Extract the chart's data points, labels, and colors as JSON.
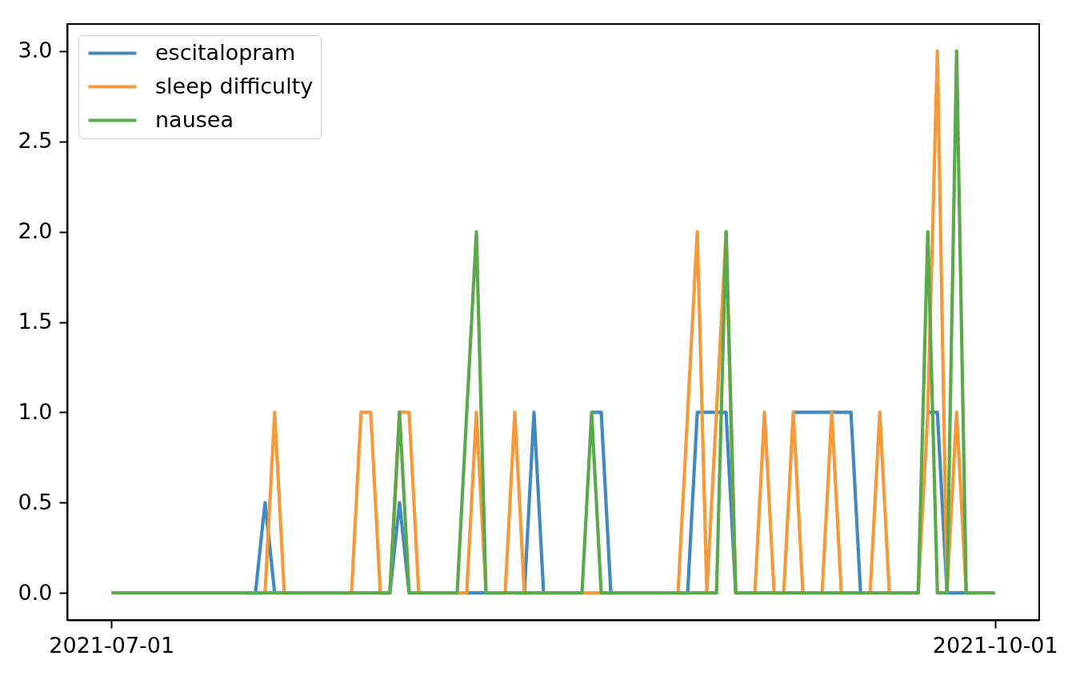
{
  "chart_data": {
    "type": "line",
    "x": [
      "2021-07-01",
      "2021-07-02",
      "2021-07-03",
      "2021-07-04",
      "2021-07-05",
      "2021-07-06",
      "2021-07-07",
      "2021-07-08",
      "2021-07-09",
      "2021-07-10",
      "2021-07-11",
      "2021-07-12",
      "2021-07-13",
      "2021-07-14",
      "2021-07-15",
      "2021-07-16",
      "2021-07-17",
      "2021-07-18",
      "2021-07-19",
      "2021-07-20",
      "2021-07-21",
      "2021-07-22",
      "2021-07-23",
      "2021-07-24",
      "2021-07-25",
      "2021-07-26",
      "2021-07-27",
      "2021-07-28",
      "2021-07-29",
      "2021-07-30",
      "2021-07-31",
      "2021-08-01",
      "2021-08-02",
      "2021-08-03",
      "2021-08-04",
      "2021-08-05",
      "2021-08-06",
      "2021-08-07",
      "2021-08-08",
      "2021-08-09",
      "2021-08-10",
      "2021-08-11",
      "2021-08-12",
      "2021-08-13",
      "2021-08-14",
      "2021-08-15",
      "2021-08-16",
      "2021-08-17",
      "2021-08-18",
      "2021-08-19",
      "2021-08-20",
      "2021-08-21",
      "2021-08-22",
      "2021-08-23",
      "2021-08-24",
      "2021-08-25",
      "2021-08-26",
      "2021-08-27",
      "2021-08-28",
      "2021-08-29",
      "2021-08-30",
      "2021-08-31",
      "2021-09-01",
      "2021-09-02",
      "2021-09-03",
      "2021-09-04",
      "2021-09-05",
      "2021-09-06",
      "2021-09-07",
      "2021-09-08",
      "2021-09-09",
      "2021-09-10",
      "2021-09-11",
      "2021-09-12",
      "2021-09-13",
      "2021-09-14",
      "2021-09-15",
      "2021-09-16",
      "2021-09-17",
      "2021-09-18",
      "2021-09-19",
      "2021-09-20",
      "2021-09-21",
      "2021-09-22",
      "2021-09-23",
      "2021-09-24",
      "2021-09-25",
      "2021-09-26",
      "2021-09-27",
      "2021-09-28",
      "2021-09-29",
      "2021-09-30",
      "2021-10-01"
    ],
    "xlim": [
      "2021-06-26T09:36",
      "2021-10-05T14:24"
    ],
    "xticks": [
      "2021-07-01",
      "2021-10-01"
    ],
    "ylim": [
      -0.15,
      3.15
    ],
    "yticks": [
      {
        "value": 0,
        "label": "0.0"
      },
      {
        "value": 0.5,
        "label": "0.5"
      },
      {
        "value": 1,
        "label": "1.0"
      },
      {
        "value": 1.5,
        "label": "1.5"
      },
      {
        "value": 2,
        "label": "2.0"
      },
      {
        "value": 2.5,
        "label": "2.5"
      },
      {
        "value": 3,
        "label": "3.0"
      }
    ],
    "legend": "top left",
    "series": [
      {
        "name": "escitalopram",
        "color": "#4289c1",
        "values": [
          null,
          null,
          null,
          null,
          null,
          null,
          null,
          null,
          null,
          null,
          null,
          null,
          null,
          null,
          0,
          0,
          0.5,
          0,
          null,
          null,
          null,
          null,
          null,
          null,
          null,
          null,
          null,
          null,
          0,
          0,
          0.5,
          0,
          null,
          null,
          null,
          null,
          null,
          0,
          0,
          0,
          null,
          null,
          0,
          0,
          1,
          0,
          null,
          null,
          null,
          null,
          1,
          1,
          0,
          null,
          null,
          null,
          null,
          null,
          null,
          0,
          0,
          1,
          1,
          1,
          1,
          0,
          null,
          null,
          null,
          null,
          null,
          1,
          1,
          1,
          1,
          1,
          1,
          1,
          0,
          null,
          null,
          null,
          null,
          null,
          null,
          1,
          1,
          0,
          0,
          0,
          null,
          null,
          null
        ]
      },
      {
        "name": "sleep difficulty",
        "color": "#f59a3a",
        "values": [
          null,
          null,
          null,
          null,
          null,
          null,
          null,
          null,
          null,
          null,
          null,
          null,
          null,
          null,
          0,
          0,
          0,
          1,
          0,
          0,
          0,
          0,
          0,
          0,
          0,
          0,
          1,
          1,
          0,
          0,
          1,
          1,
          0,
          0,
          0,
          0,
          0,
          0,
          1,
          0,
          0,
          0,
          1,
          0,
          0,
          0,
          0,
          0,
          0,
          0,
          0,
          0,
          0,
          0,
          0,
          0,
          0,
          0,
          0,
          0,
          1,
          2,
          0,
          1,
          2,
          0,
          0,
          0,
          1,
          0,
          0,
          1,
          0,
          0,
          0,
          1,
          0,
          0,
          0,
          0,
          1,
          0,
          0,
          0,
          0,
          1,
          3,
          0,
          1,
          0,
          0,
          null,
          null
        ]
      },
      {
        "name": "nausea",
        "color": "#5aaa4b",
        "values": [
          0,
          0,
          0,
          0,
          0,
          0,
          0,
          0,
          0,
          0,
          0,
          0,
          0,
          0,
          0,
          0,
          0,
          0,
          0,
          0,
          0,
          0,
          0,
          0,
          0,
          0,
          0,
          0,
          0,
          0,
          1,
          0,
          0,
          0,
          0,
          0,
          0,
          1,
          2,
          0,
          0,
          0,
          0,
          0,
          0,
          0,
          0,
          0,
          0,
          0,
          1,
          0,
          0,
          0,
          0,
          0,
          0,
          0,
          0,
          0,
          0,
          0,
          0,
          0,
          2,
          0,
          0,
          0,
          0,
          0,
          0,
          0,
          0,
          0,
          0,
          0,
          0,
          0,
          0,
          0,
          0,
          0,
          0,
          0,
          0,
          2,
          0,
          0,
          3,
          0,
          0,
          0,
          0
        ]
      }
    ]
  }
}
